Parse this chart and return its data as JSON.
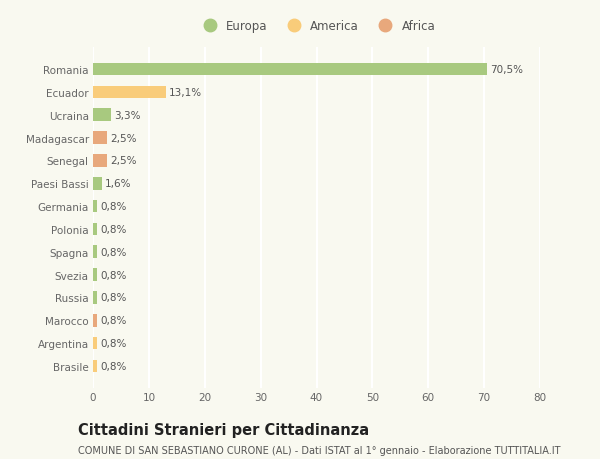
{
  "categories": [
    "Romania",
    "Ecuador",
    "Ucraina",
    "Madagascar",
    "Senegal",
    "Paesi Bassi",
    "Germania",
    "Polonia",
    "Spagna",
    "Svezia",
    "Russia",
    "Marocco",
    "Argentina",
    "Brasile"
  ],
  "values": [
    70.5,
    13.1,
    3.3,
    2.5,
    2.5,
    1.6,
    0.8,
    0.8,
    0.8,
    0.8,
    0.8,
    0.8,
    0.8,
    0.8
  ],
  "labels": [
    "70,5%",
    "13,1%",
    "3,3%",
    "2,5%",
    "2,5%",
    "1,6%",
    "0,8%",
    "0,8%",
    "0,8%",
    "0,8%",
    "0,8%",
    "0,8%",
    "0,8%",
    "0,8%"
  ],
  "colors": [
    "#a8c97f",
    "#f9cc7a",
    "#a8c97f",
    "#e8a87c",
    "#e8a87c",
    "#a8c97f",
    "#a8c97f",
    "#a8c97f",
    "#a8c97f",
    "#a8c97f",
    "#a8c97f",
    "#e8a87c",
    "#f9cc7a",
    "#f9cc7a"
  ],
  "legend": [
    {
      "label": "Europa",
      "color": "#a8c97f"
    },
    {
      "label": "America",
      "color": "#f9cc7a"
    },
    {
      "label": "Africa",
      "color": "#e8a87c"
    }
  ],
  "xlim": [
    0,
    80
  ],
  "xticks": [
    0,
    10,
    20,
    30,
    40,
    50,
    60,
    70,
    80
  ],
  "title": "Cittadini Stranieri per Cittadinanza",
  "subtitle": "COMUNE DI SAN SEBASTIANO CURONE (AL) - Dati ISTAT al 1° gennaio - Elaborazione TUTTITALIA.IT",
  "background_color": "#f9f9f0",
  "grid_color": "#ffffff",
  "bar_height": 0.55,
  "label_fontsize": 7.5,
  "tick_fontsize": 7.5,
  "title_fontsize": 10.5,
  "subtitle_fontsize": 7.0,
  "legend_fontsize": 8.5
}
